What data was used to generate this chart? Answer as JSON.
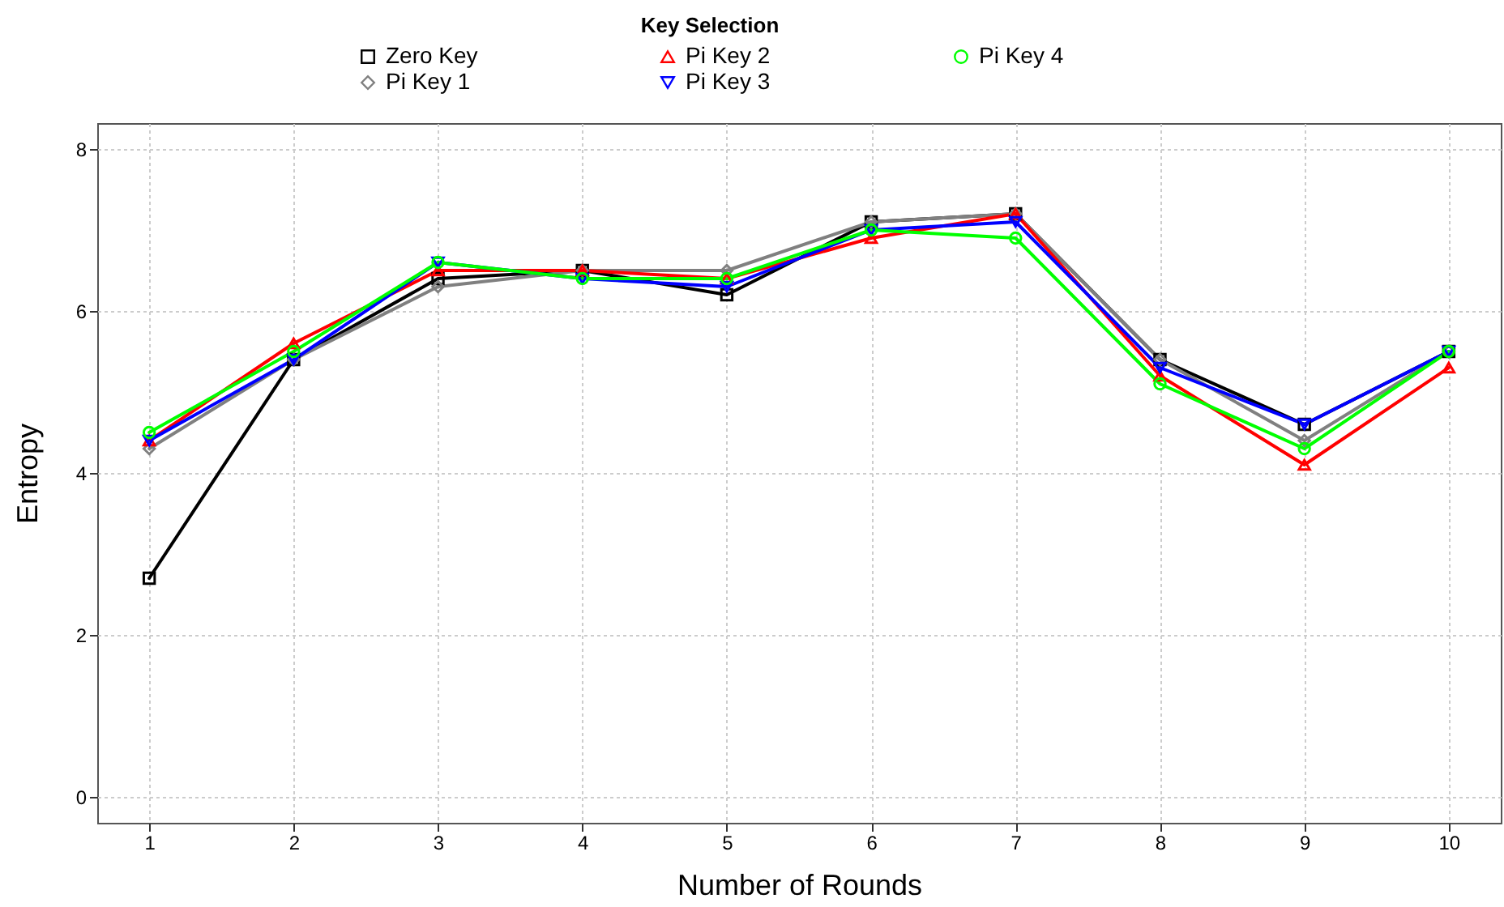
{
  "chart_data": {
    "type": "line",
    "xlabel": "Number of Rounds",
    "ylabel": "Entropy",
    "legend_title": "Key Selection",
    "legend": "top",
    "x": [
      1,
      2,
      3,
      4,
      5,
      6,
      7,
      8,
      9,
      10
    ],
    "xlim": [
      0.64,
      10.36
    ],
    "xticks": [
      1,
      2,
      3,
      4,
      5,
      6,
      7,
      8,
      9,
      10
    ],
    "ylim": [
      -0.32,
      8.32
    ],
    "yticks": [
      0,
      2,
      4,
      6,
      8
    ],
    "grid": true,
    "line_style": "solid",
    "series": [
      {
        "name": "Zero Key",
        "color": "#000000",
        "marker": "square",
        "values": [
          2.7,
          5.4,
          6.4,
          6.5,
          6.2,
          7.1,
          7.2,
          5.4,
          4.6,
          5.5
        ]
      },
      {
        "name": "Pi Key 1",
        "color": "#808080",
        "marker": "diamond",
        "values": [
          4.3,
          5.4,
          6.3,
          6.5,
          6.5,
          7.1,
          7.2,
          5.4,
          4.4,
          5.5
        ]
      },
      {
        "name": "Pi Key 2",
        "color": "#ff0000",
        "marker": "triangle",
        "values": [
          4.4,
          5.6,
          6.5,
          6.5,
          6.4,
          6.9,
          7.2,
          5.2,
          4.1,
          5.3
        ]
      },
      {
        "name": "Pi Key 3",
        "color": "#0000ff",
        "marker": "triangle-down",
        "values": [
          4.4,
          5.4,
          6.6,
          6.4,
          6.3,
          7.0,
          7.1,
          5.3,
          4.6,
          5.5
        ]
      },
      {
        "name": "Pi Key 4",
        "color": "#00ff00",
        "marker": "circle",
        "values": [
          4.5,
          5.5,
          6.6,
          6.4,
          6.4,
          7.0,
          6.9,
          5.1,
          4.3,
          5.5
        ]
      }
    ]
  }
}
